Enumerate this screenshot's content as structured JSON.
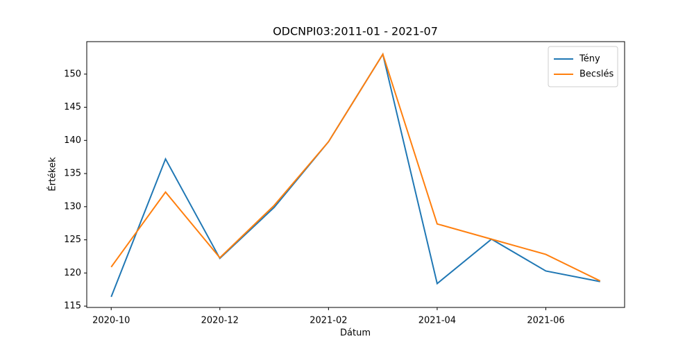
{
  "chart_data": {
    "type": "line",
    "title": "ODCNPI03:2011-01 - 2021-07",
    "x_label": "Dátum",
    "y_label": "Értékek",
    "x": [
      "2020-10",
      "2020-11",
      "2020-12",
      "2021-01",
      "2021-02",
      "2021-03",
      "2021-04",
      "2021-05",
      "2021-06",
      "2021-07"
    ],
    "xticks": [
      "2020-10",
      "2020-12",
      "2021-02",
      "2021-04",
      "2021-06"
    ],
    "series": [
      {
        "name": "Tény",
        "color": "#1f77b4",
        "values": [
          116.4,
          137.2,
          122.2,
          129.9,
          139.8,
          153.0,
          118.4,
          125.1,
          120.3,
          118.7
        ]
      },
      {
        "name": "Becslés",
        "color": "#ff7f0e",
        "values": [
          120.9,
          132.2,
          122.3,
          130.2,
          139.8,
          153.0,
          127.4,
          125.1,
          122.8,
          118.8
        ]
      }
    ],
    "ylim": [
      114.8,
      154.9
    ],
    "yticks": [
      115,
      120,
      125,
      130,
      135,
      140,
      145,
      150
    ],
    "legend": "upper right"
  }
}
